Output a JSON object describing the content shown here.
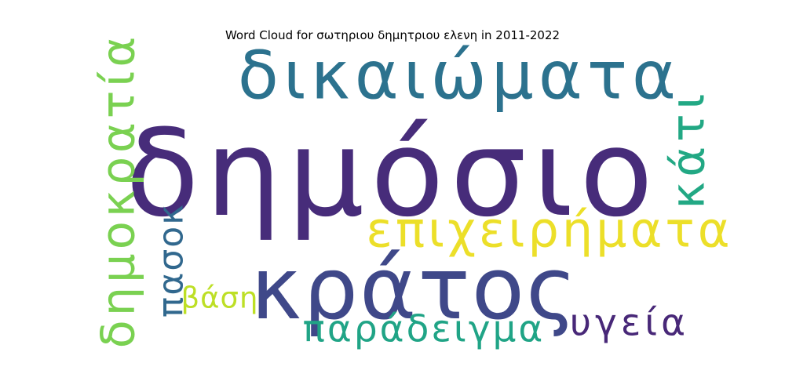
{
  "chart_data": {
    "type": "wordcloud",
    "title": "Word Cloud for σωτηριου δημητριου ελενη in 2011-2022",
    "words": [
      {
        "text": "δημόσιο",
        "weight": 100,
        "color": "#472c7a",
        "rotate": 0
      },
      {
        "text": "κράτος",
        "weight": 72,
        "color": "#3f4889",
        "rotate": 0
      },
      {
        "text": "δικαιώματα",
        "weight": 55,
        "color": "#2c728e",
        "rotate": 0
      },
      {
        "text": "επιχειρήματα",
        "weight": 40,
        "color": "#ecdf29",
        "rotate": 0
      },
      {
        "text": "δημοκρατία",
        "weight": 38,
        "color": "#7ad151",
        "rotate": 90
      },
      {
        "text": "κάτι",
        "weight": 38,
        "color": "#22a884",
        "rotate": 90
      },
      {
        "text": "παράδειγμα",
        "weight": 30,
        "color": "#20a486",
        "rotate": 0
      },
      {
        "text": "υγεία",
        "weight": 30,
        "color": "#482878",
        "rotate": 0
      },
      {
        "text": "πασοκ",
        "weight": 28,
        "color": "#31688e",
        "rotate": 90
      },
      {
        "text": "βάση",
        "weight": 24,
        "color": "#bddf26",
        "rotate": 0
      }
    ]
  }
}
